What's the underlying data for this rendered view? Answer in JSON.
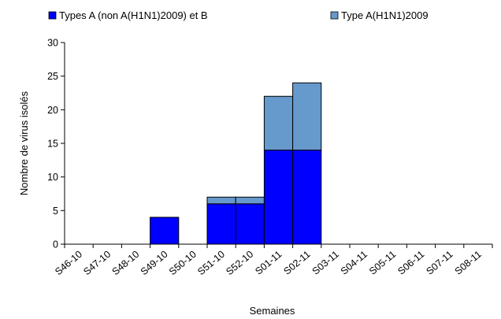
{
  "chart_data": {
    "type": "bar",
    "stacked": true,
    "categories": [
      "S46-10",
      "S47-10",
      "S48-10",
      "S49-10",
      "S50-10",
      "S51-10",
      "S52-10",
      "S01-11",
      "S02-11",
      "S03-11",
      "S04-11",
      "S05-11",
      "S06-11",
      "S07-11",
      "S08-11"
    ],
    "series": [
      {
        "name": "Types A (non A(H1N1)2009) et B",
        "color": "#0000ff",
        "values": [
          0,
          0,
          0,
          4,
          0,
          6,
          6,
          14,
          14,
          0,
          0,
          0,
          0,
          0,
          0
        ]
      },
      {
        "name": "Type A(H1N1)2009",
        "color": "#6699cc",
        "values": [
          0,
          0,
          0,
          0,
          0,
          1,
          1,
          8,
          10,
          0,
          0,
          0,
          0,
          0,
          0
        ]
      }
    ],
    "xlabel": "Semaines",
    "ylabel": "Nombre de virus isolés",
    "ylim": [
      0,
      30
    ],
    "yticks": [
      0,
      5,
      10,
      15,
      20,
      25,
      30
    ],
    "grid": false,
    "legend_position": "top",
    "title": ""
  }
}
